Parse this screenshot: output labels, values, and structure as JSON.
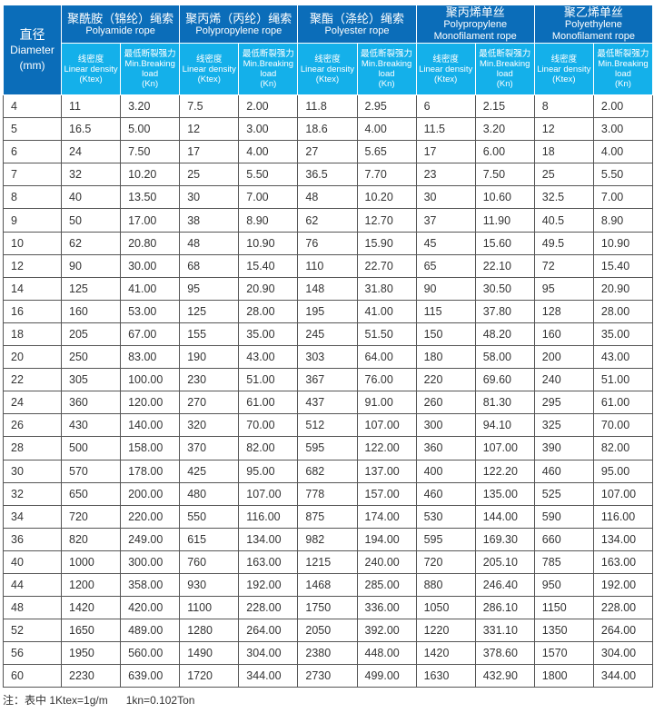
{
  "header": {
    "diameter": {
      "zh": "直径",
      "en": "Diameter",
      "unit": "(mm)"
    },
    "groups": [
      {
        "zh": "聚酰胺（锦纶）绳索",
        "en": "Polyamide rope"
      },
      {
        "zh": "聚丙烯（丙纶）绳索",
        "en": "Polypropylene rope"
      },
      {
        "zh": "聚酯（涤纶）绳索",
        "en": "Polyester rope"
      },
      {
        "zh": "聚丙烯单丝",
        "en": "Polypropylene Monofilament rope"
      },
      {
        "zh": "聚乙烯单丝",
        "en": "Polyethylene Monofilament rope"
      }
    ],
    "sub": {
      "density": {
        "zh": "线密度",
        "en": "Linear density",
        "unit": "(Ktex)"
      },
      "load": {
        "zh": "最低断裂强力",
        "en": "Min.Breaking load",
        "unit": "(Kn)"
      }
    }
  },
  "rows": [
    [
      "4",
      "11",
      "3.20",
      "7.5",
      "2.00",
      "11.8",
      "2.95",
      "6",
      "2.15",
      "8",
      "2.00"
    ],
    [
      "5",
      "16.5",
      "5.00",
      "12",
      "3.00",
      "18.6",
      "4.00",
      "11.5",
      "3.20",
      "12",
      "3.00"
    ],
    [
      "6",
      "24",
      "7.50",
      "17",
      "4.00",
      "27",
      "5.65",
      "17",
      "6.00",
      "18",
      "4.00"
    ],
    [
      "7",
      "32",
      "10.20",
      "25",
      "5.50",
      "36.5",
      "7.70",
      "23",
      "7.50",
      "25",
      "5.50"
    ],
    [
      "8",
      "40",
      "13.50",
      "30",
      "7.00",
      "48",
      "10.20",
      "30",
      "10.60",
      "32.5",
      "7.00"
    ],
    [
      "9",
      "50",
      "17.00",
      "38",
      "8.90",
      "62",
      "12.70",
      "37",
      "11.90",
      "40.5",
      "8.90"
    ],
    [
      "10",
      "62",
      "20.80",
      "48",
      "10.90",
      "76",
      "15.90",
      "45",
      "15.60",
      "49.5",
      "10.90"
    ],
    [
      "12",
      "90",
      "30.00",
      "68",
      "15.40",
      "110",
      "22.70",
      "65",
      "22.10",
      "72",
      "15.40"
    ],
    [
      "14",
      "125",
      "41.00",
      "95",
      "20.90",
      "148",
      "31.80",
      "90",
      "30.50",
      "95",
      "20.90"
    ],
    [
      "16",
      "160",
      "53.00",
      "125",
      "28.00",
      "195",
      "41.00",
      "115",
      "37.80",
      "128",
      "28.00"
    ],
    [
      "18",
      "205",
      "67.00",
      "155",
      "35.00",
      "245",
      "51.50",
      "150",
      "48.20",
      "160",
      "35.00"
    ],
    [
      "20",
      "250",
      "83.00",
      "190",
      "43.00",
      "303",
      "64.00",
      "180",
      "58.00",
      "200",
      "43.00"
    ],
    [
      "22",
      "305",
      "100.00",
      "230",
      "51.00",
      "367",
      "76.00",
      "220",
      "69.60",
      "240",
      "51.00"
    ],
    [
      "24",
      "360",
      "120.00",
      "270",
      "61.00",
      "437",
      "91.00",
      "260",
      "81.30",
      "295",
      "61.00"
    ],
    [
      "26",
      "430",
      "140.00",
      "320",
      "70.00",
      "512",
      "107.00",
      "300",
      "94.10",
      "325",
      "70.00"
    ],
    [
      "28",
      "500",
      "158.00",
      "370",
      "82.00",
      "595",
      "122.00",
      "360",
      "107.00",
      "390",
      "82.00"
    ],
    [
      "30",
      "570",
      "178.00",
      "425",
      "95.00",
      "682",
      "137.00",
      "400",
      "122.20",
      "460",
      "95.00"
    ],
    [
      "32",
      "650",
      "200.00",
      "480",
      "107.00",
      "778",
      "157.00",
      "460",
      "135.00",
      "525",
      "107.00"
    ],
    [
      "34",
      "720",
      "220.00",
      "550",
      "116.00",
      "875",
      "174.00",
      "530",
      "144.00",
      "590",
      "116.00"
    ],
    [
      "36",
      "820",
      "249.00",
      "615",
      "134.00",
      "982",
      "194.00",
      "595",
      "169.30",
      "660",
      "134.00"
    ],
    [
      "40",
      "1000",
      "300.00",
      "760",
      "163.00",
      "1215",
      "240.00",
      "720",
      "205.10",
      "785",
      "163.00"
    ],
    [
      "44",
      "1200",
      "358.00",
      "930",
      "192.00",
      "1468",
      "285.00",
      "880",
      "246.40",
      "950",
      "192.00"
    ],
    [
      "48",
      "1420",
      "420.00",
      "1100",
      "228.00",
      "1750",
      "336.00",
      "1050",
      "286.10",
      "1150",
      "228.00"
    ],
    [
      "52",
      "1650",
      "489.00",
      "1280",
      "264.00",
      "2050",
      "392.00",
      "1220",
      "331.10",
      "1350",
      "264.00"
    ],
    [
      "56",
      "1950",
      "560.00",
      "1490",
      "304.00",
      "2380",
      "448.00",
      "1420",
      "378.60",
      "1570",
      "304.00"
    ],
    [
      "60",
      "2230",
      "639.00",
      "1720",
      "344.00",
      "2730",
      "499.00",
      "1630",
      "432.90",
      "1800",
      "344.00"
    ]
  ],
  "note": "注：表中 1Ktex=1g/m      1kn=0.102Ton",
  "colors": {
    "header_dark": "#0b6db9",
    "header_light": "#14b0ea"
  }
}
